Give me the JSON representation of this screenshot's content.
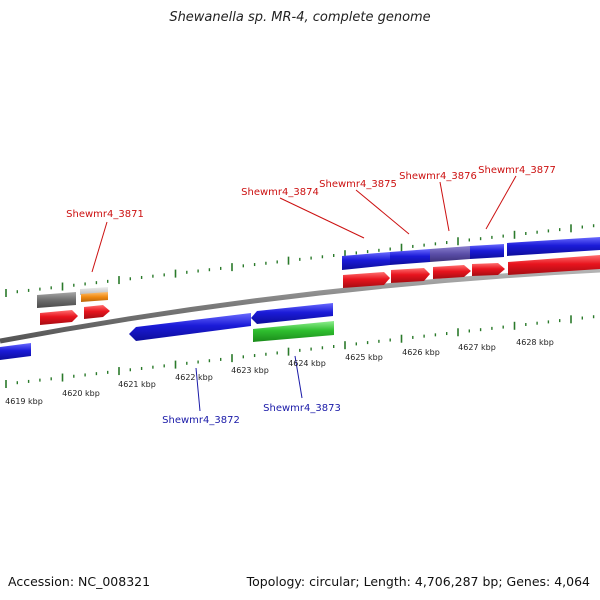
{
  "title": "Shewanella sp. MR-4, complete genome",
  "accession": "Accession: NC_008321",
  "summary": "Topology: circular; Length: 4,706,287 bp; Genes: 4,064",
  "colors": {
    "cds_forward": "#1b1bd8",
    "gene_red": "#e8141e",
    "rna_green": "#2fbf2f",
    "pseudo_gray": "#6e6e6e",
    "light_gray": "#c9c9c9",
    "orange": "#ef8a12",
    "purple": "#5b4ea8",
    "tick_green": "#2a7a2a",
    "label_red": "#cc1111",
    "label_blue": "#1a1aa8"
  },
  "scale_labels": [
    "4619 kbp",
    "4620 kbp",
    "4621 kbp",
    "4622 kbp",
    "4623 kbp",
    "4624 kbp",
    "4625 kbp",
    "4626 kbp",
    "4627 kbp",
    "4628 kbp"
  ],
  "gene_labels": [
    {
      "text": "Shewmr4_3871",
      "color": "red"
    },
    {
      "text": "Shewmr4_3872",
      "color": "blue"
    },
    {
      "text": "Shewmr4_3873",
      "color": "blue"
    },
    {
      "text": "Shewmr4_3874",
      "color": "red"
    },
    {
      "text": "Shewmr4_3875",
      "color": "red"
    },
    {
      "text": "Shewmr4_3876",
      "color": "red"
    },
    {
      "text": "Shewmr4_3877",
      "color": "red"
    }
  ]
}
